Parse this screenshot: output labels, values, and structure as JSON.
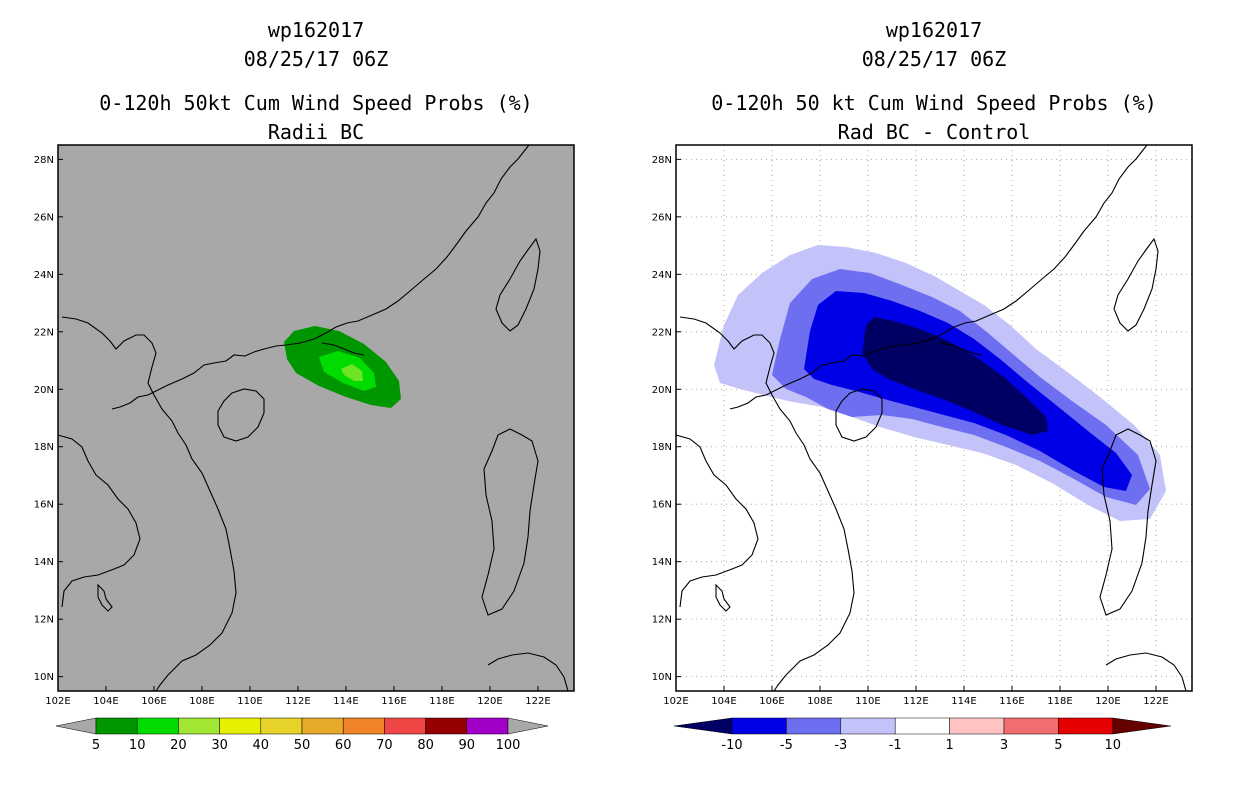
{
  "left_panel": {
    "storm_id": "wp162017",
    "datetime": "08/25/17 06Z",
    "title": "0-120h 50kt Cum Wind Speed Probs (%)",
    "subtitle": "Radii BC",
    "background_color": "#a8a8a8",
    "colorbar": {
      "labels": [
        "5",
        "10",
        "20",
        "30",
        "40",
        "50",
        "60",
        "70",
        "80",
        "90",
        "100"
      ],
      "colors": [
        "#009600",
        "#00dc00",
        "#a0e632",
        "#e6f000",
        "#e6d228",
        "#e6aa28",
        "#f08228",
        "#f04646",
        "#960000",
        "#a000c8"
      ]
    }
  },
  "right_panel": {
    "storm_id": "wp162017",
    "datetime": "08/25/17 06Z",
    "title": "0-120h 50 kt Cum Wind Speed Probs (%)",
    "subtitle": "Rad BC - Control",
    "background_color": "#ffffff",
    "colorbar": {
      "labels": [
        "-10",
        "-5",
        "-3",
        "-1",
        "1",
        "3",
        "5",
        "10"
      ],
      "colors": [
        "#000064",
        "#0000e6",
        "#6e6ef0",
        "#c3c3fa",
        "#ffffff",
        "#ffc3c3",
        "#f06e6e",
        "#e60000",
        "#640000"
      ]
    }
  },
  "map_axes": {
    "lon_range": [
      102,
      123.5
    ],
    "lat_range": [
      9.5,
      28.5
    ],
    "lon_ticks": [
      "102E",
      "104E",
      "106E",
      "108E",
      "110E",
      "112E",
      "114E",
      "116E",
      "118E",
      "120E",
      "122E"
    ],
    "lat_ticks": [
      "10N",
      "12N",
      "14N",
      "16N",
      "18N",
      "20N",
      "22N",
      "24N",
      "26N",
      "28N"
    ]
  }
}
